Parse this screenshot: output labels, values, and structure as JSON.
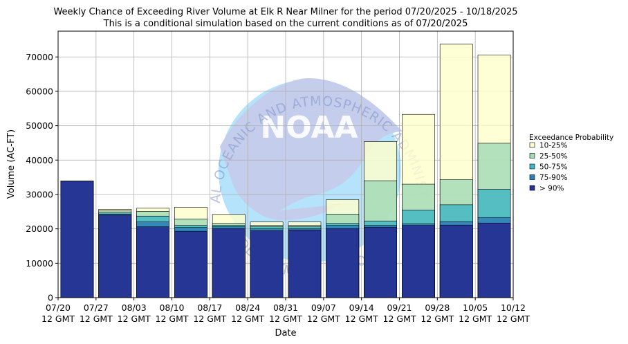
{
  "chart_data": {
    "type": "bar",
    "title": "Weekly Chance of Exceeding River Volume at Elk R Near Milner for the period 07/20/2025 - 10/18/2025",
    "subtitle": "This is a conditional simulation based on the current conditions as of 07/20/2025",
    "xlabel": "Date",
    "ylabel": "Volume (AC-FT)",
    "ylim": [
      0,
      77500
    ],
    "yticks": [
      0,
      10000,
      20000,
      30000,
      40000,
      50000,
      60000,
      70000
    ],
    "xtick_labels": [
      [
        "07/20",
        "12 GMT"
      ],
      [
        "07/27",
        "12 GMT"
      ],
      [
        "08/03",
        "12 GMT"
      ],
      [
        "08/10",
        "12 GMT"
      ],
      [
        "08/17",
        "12 GMT"
      ],
      [
        "08/24",
        "12 GMT"
      ],
      [
        "08/31",
        "12 GMT"
      ],
      [
        "09/07",
        "12 GMT"
      ],
      [
        "09/14",
        "12 GMT"
      ],
      [
        "09/21",
        "12 GMT"
      ],
      [
        "09/28",
        "12 GMT"
      ],
      [
        "10/05",
        "12 GMT"
      ],
      [
        "10/12",
        "12 GMT"
      ]
    ],
    "grid": true,
    "legend": {
      "title": "Exceedance Probability",
      "placement": "right"
    },
    "series": [
      {
        "name": "10-25%",
        "color": "#ffffcc",
        "values": [
          33900,
          25700,
          26000,
          26300,
          24200,
          22000,
          22000,
          28500,
          45400,
          53300,
          73700,
          70600
        ]
      },
      {
        "name": "25-50%",
        "color": "#a1dab4",
        "values": [
          33900,
          25200,
          25100,
          22900,
          21600,
          21000,
          21000,
          24300,
          34000,
          33000,
          34300,
          44900
        ]
      },
      {
        "name": "50-75%",
        "color": "#41b6c4",
        "values": [
          33900,
          24700,
          23700,
          21000,
          21000,
          20600,
          20600,
          21600,
          22300,
          25500,
          27000,
          31500
        ]
      },
      {
        "name": "75-90%",
        "color": "#2c7fb8",
        "values": [
          33900,
          24300,
          22000,
          20400,
          20600,
          20000,
          20100,
          21000,
          21000,
          21500,
          22100,
          23300
        ]
      },
      {
        "name": "> 90%",
        "color": "#253494",
        "values": [
          33900,
          24000,
          20600,
          19300,
          20100,
          19500,
          19700,
          20100,
          20500,
          21000,
          21100,
          21700
        ]
      }
    ],
    "watermark": {
      "text": "NATIONAL OCEANIC AND ATMOSPHERIC ADMINISTRATION",
      "logo_text": "NOAA",
      "bottom_text": "U.S. DEPARTMENT OF COMMERCE"
    }
  }
}
